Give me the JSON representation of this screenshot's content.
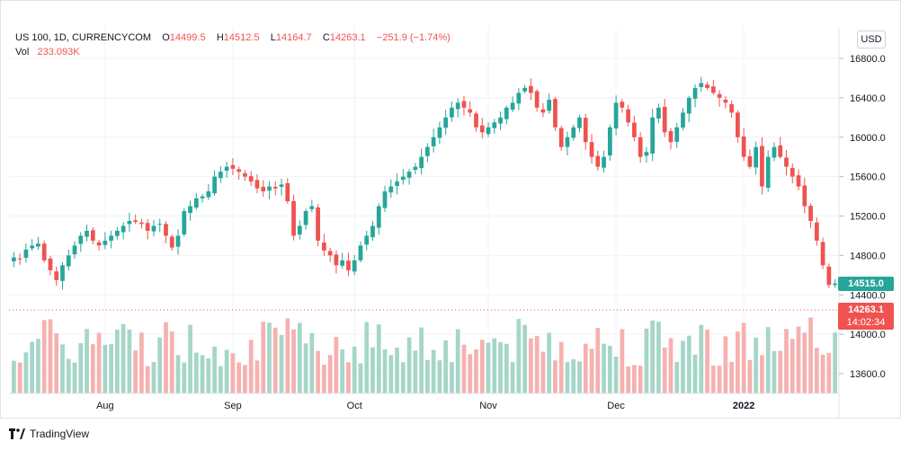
{
  "legend": {
    "symbol": "US 100, 1D, CURRENCYCOM",
    "open_label": "O",
    "open": "14499.5",
    "high_label": "H",
    "high": "14512.5",
    "low_label": "L",
    "low": "14164.7",
    "close_label": "C",
    "close": "14263.1",
    "change": "−251.9 (−1.74%)",
    "vol_label": "Vol",
    "vol": "233.093K"
  },
  "currency_button": "USD",
  "price_labels": {
    "current_price": "14515.0",
    "last_close": "14263.1",
    "countdown": "14:02:34"
  },
  "footer": {
    "brand": "TradingView"
  },
  "colors": {
    "up": "#26a69a",
    "down": "#ef5350",
    "up_vol": "#a5d6c8",
    "down_vol": "#f5b1b0"
  },
  "chart_data": {
    "type": "candlestick",
    "y_ticks": [
      "13600.0",
      "14000.0",
      "14400.0",
      "14800.0",
      "15200.0",
      "15600.0",
      "16000.0",
      "16400.0",
      "16800.0"
    ],
    "ylim": [
      13400,
      17000
    ],
    "x_ticks": [
      {
        "label": "Aug",
        "index": 15
      },
      {
        "label": "Sep",
        "index": 36
      },
      {
        "label": "Oct",
        "index": 56
      },
      {
        "label": "Nov",
        "index": 78
      },
      {
        "label": "Dec",
        "index": 99
      },
      {
        "label": "2022",
        "index": 120,
        "bold": true
      }
    ],
    "current_price": 14515.0,
    "last_close": 14263.1,
    "closes": [
      14780,
      14760,
      14860,
      14900,
      14920,
      14750,
      14650,
      14550,
      14700,
      14800,
      14900,
      15000,
      15050,
      14950,
      14900,
      14950,
      15000,
      15050,
      15100,
      15150,
      15140,
      15120,
      15050,
      15100,
      15120,
      15000,
      14880,
      15000,
      15250,
      15300,
      15380,
      15400,
      15450,
      15600,
      15650,
      15700,
      15680,
      15650,
      15600,
      15550,
      15480,
      15450,
      15500,
      15480,
      15520,
      15350,
      15000,
      15100,
      15250,
      15300,
      14950,
      14850,
      14800,
      14700,
      14750,
      14650,
      14750,
      14900,
      15000,
      15100,
      15300,
      15450,
      15500,
      15550,
      15600,
      15650,
      15700,
      15800,
      15900,
      16000,
      16100,
      16200,
      16300,
      16350,
      16300,
      16250,
      16100,
      16050,
      16100,
      16150,
      16200,
      16300,
      16350,
      16450,
      16500,
      16450,
      16300,
      16250,
      16380,
      16100,
      15900,
      16000,
      16100,
      16200,
      15950,
      15800,
      15700,
      15800,
      16100,
      16350,
      16300,
      16150,
      16000,
      15800,
      15850,
      16200,
      16300,
      16050,
      15950,
      16100,
      16250,
      16400,
      16500,
      16550,
      16500,
      16450,
      16400,
      16350,
      16250,
      16000,
      15800,
      15700,
      15900,
      15500,
      15800,
      15900,
      15800,
      15700,
      15600,
      15500,
      15300,
      15150,
      14950,
      14700,
      14500,
      14515
    ]
  }
}
